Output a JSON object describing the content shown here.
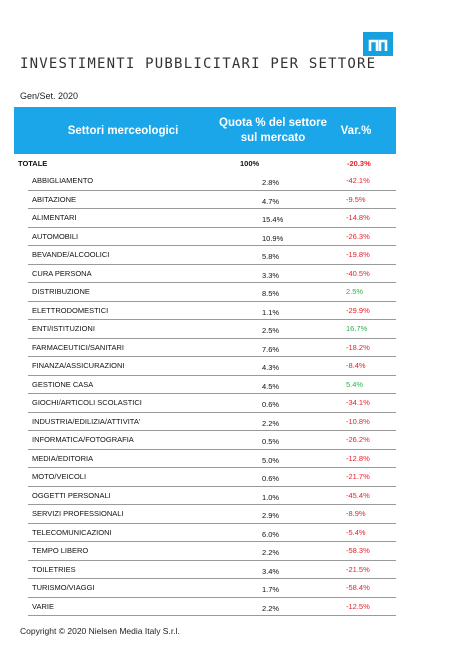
{
  "logo": {
    "brand_color": "#1ba6ea"
  },
  "title": "INVESTIMENTI PUBBLICITARI PER SETTORE",
  "period": "Gen/Set. 2020",
  "table": {
    "headers": {
      "sector": "Settori merceologici",
      "share": "Quota % del settore sul mercato",
      "change": "Var.%"
    },
    "total": {
      "label": "TOTALE",
      "share": "100%",
      "change": "-20.3%"
    },
    "rows": [
      {
        "label": "ABBIGLIAMENTO",
        "share": "2.8%",
        "change": "-42.1%"
      },
      {
        "label": "ABITAZIONE",
        "share": "4.7%",
        "change": "-9.5%"
      },
      {
        "label": "ALIMENTARI",
        "share": "15.4%",
        "change": "-14.8%"
      },
      {
        "label": "AUTOMOBILI",
        "share": "10.9%",
        "change": "-26.3%"
      },
      {
        "label": "BEVANDE/ALCOOLICI",
        "share": "5.8%",
        "change": "-19.8%"
      },
      {
        "label": "CURA PERSONA",
        "share": "3.3%",
        "change": "-40.5%"
      },
      {
        "label": "DISTRIBUZIONE",
        "share": "8.5%",
        "change": "2.5%"
      },
      {
        "label": "ELETTRODOMESTICI",
        "share": "1.1%",
        "change": "-29.9%"
      },
      {
        "label": "ENTI/ISTITUZIONI",
        "share": "2.5%",
        "change": "16.7%"
      },
      {
        "label": "FARMACEUTICI/SANITARI",
        "share": "7.6%",
        "change": "-18.2%"
      },
      {
        "label": "FINANZA/ASSICURAZIONI",
        "share": "4.3%",
        "change": "-8.4%"
      },
      {
        "label": "GESTIONE CASA",
        "share": "4.5%",
        "change": "5.4%"
      },
      {
        "label": "GIOCHI/ARTICOLI SCOLASTICI",
        "share": "0.6%",
        "change": "-34.1%"
      },
      {
        "label": "INDUSTRIA/EDILIZIA/ATTIVITA'",
        "share": "2.2%",
        "change": "-10.8%"
      },
      {
        "label": "INFORMATICA/FOTOGRAFIA",
        "share": "0.5%",
        "change": "-26.2%"
      },
      {
        "label": "MEDIA/EDITORIA",
        "share": "5.0%",
        "change": "-12.8%"
      },
      {
        "label": "MOTO/VEICOLI",
        "share": "0.6%",
        "change": "-21.7%"
      },
      {
        "label": "OGGETTI PERSONALI",
        "share": "1.0%",
        "change": "-45.4%"
      },
      {
        "label": "SERVIZI PROFESSIONALI",
        "share": "2.9%",
        "change": "-8.9%"
      },
      {
        "label": "TELECOMUNICAZIONI",
        "share": "6.0%",
        "change": "-5.4%"
      },
      {
        "label": "TEMPO LIBERO",
        "share": "2.2%",
        "change": "-58.3%"
      },
      {
        "label": "TOILETRIES",
        "share": "3.4%",
        "change": "-21.5%"
      },
      {
        "label": "TURISMO/VIAGGI",
        "share": "1.7%",
        "change": "-58.4%"
      },
      {
        "label": "VARIE",
        "share": "2.2%",
        "change": "-12.5%"
      }
    ]
  },
  "colors": {
    "header": "#1ba6ea",
    "negative": "#e8202a",
    "positive": "#27b24a"
  },
  "copyright": "Copyright © 2020 Nielsen Media Italy S.r.l."
}
